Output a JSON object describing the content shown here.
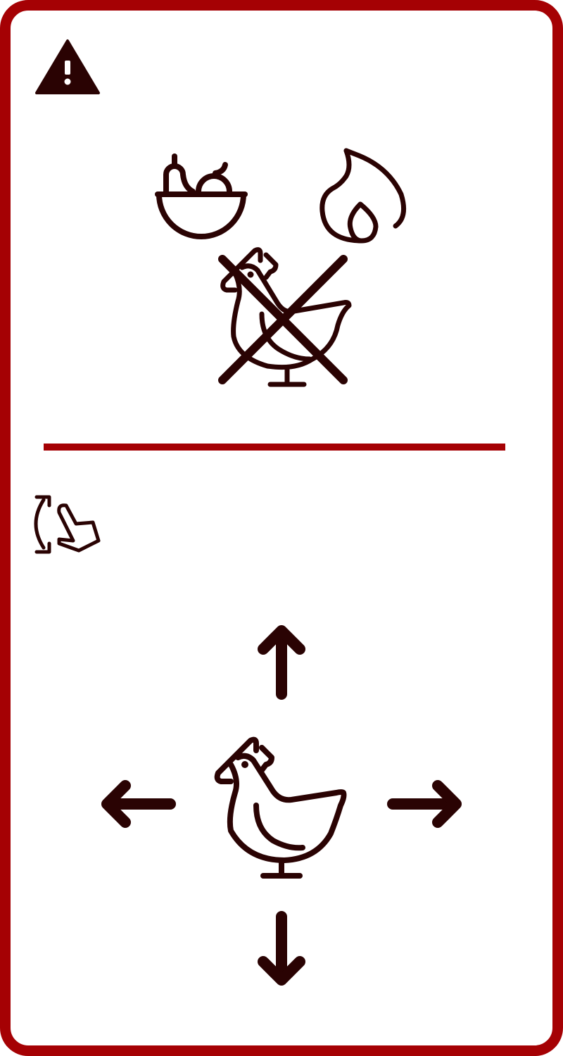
{
  "panel": {
    "accent_color": "#a50104",
    "icon_color": "#2a0303"
  },
  "warning": {
    "icon": "warning-triangle-icon"
  },
  "top_section": {
    "food_icon": "food-bowl-icon",
    "fire_icon": "flame-icon",
    "no_chicken_icon": "crossed-out-chicken-icon"
  },
  "bottom_section": {
    "rotate_icon": "rotate-hand-gesture-icon",
    "chicken_icon": "chicken-icon",
    "arrows": [
      "arrow-up-icon",
      "arrow-left-icon",
      "arrow-right-icon",
      "arrow-down-icon"
    ]
  }
}
